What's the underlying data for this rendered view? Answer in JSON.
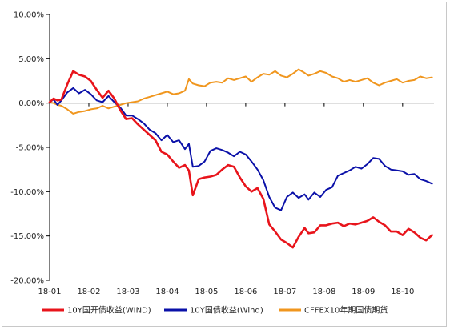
{
  "chart_data": {
    "type": "line",
    "title": "",
    "xlabel": "",
    "ylabel": "",
    "ylim": [
      -20,
      10
    ],
    "y_ticks": [
      10,
      5,
      0,
      -5,
      -10,
      -15,
      -20
    ],
    "y_tick_labels": [
      "10.00%",
      "5.00%",
      "0.00%",
      "-5.00%",
      "-10.00%",
      "-15.00%",
      "-20.00%"
    ],
    "x_ticks": [
      0,
      1,
      2,
      3,
      4,
      5,
      6,
      7,
      8,
      9
    ],
    "x_tick_labels": [
      "18-01",
      "18-02",
      "18-03",
      "18-04",
      "18-05",
      "18-06",
      "18-07",
      "18-08",
      "18-09",
      "18-10"
    ],
    "xlim": [
      0,
      9.8
    ],
    "grid": false,
    "legend_position": "bottom",
    "series": [
      {
        "name": "10Y国开债收益(WIND)",
        "color": "#e8141b",
        "x": [
          0,
          0.1,
          0.2,
          0.3,
          0.45,
          0.6,
          0.75,
          0.9,
          1.05,
          1.2,
          1.35,
          1.5,
          1.65,
          1.8,
          1.95,
          2.1,
          2.25,
          2.4,
          2.55,
          2.7,
          2.85,
          3.0,
          3.15,
          3.3,
          3.45,
          3.55,
          3.65,
          3.8,
          3.95,
          4.1,
          4.25,
          4.4,
          4.55,
          4.7,
          4.85,
          5.0,
          5.15,
          5.3,
          5.45,
          5.6,
          5.75,
          5.9,
          6.05,
          6.2,
          6.35,
          6.5,
          6.6,
          6.75,
          6.9,
          7.05,
          7.2,
          7.35,
          7.5,
          7.65,
          7.8,
          7.95,
          8.1,
          8.25,
          8.4,
          8.55,
          8.7,
          8.85,
          9.0,
          9.15,
          9.3,
          9.45,
          9.6,
          9.75
        ],
        "values": [
          0.1,
          0.5,
          0.3,
          0.4,
          2.1,
          3.6,
          3.2,
          3.0,
          2.5,
          1.5,
          0.6,
          1.4,
          0.5,
          -0.8,
          -1.8,
          -1.7,
          -2.4,
          -3.0,
          -3.6,
          -4.2,
          -5.5,
          -5.8,
          -6.6,
          -7.3,
          -7.0,
          -7.6,
          -10.4,
          -8.6,
          -8.4,
          -8.3,
          -8.1,
          -7.5,
          -7.0,
          -7.2,
          -8.4,
          -9.4,
          -10.0,
          -9.6,
          -10.8,
          -13.7,
          -14.5,
          -15.4,
          -15.8,
          -16.3,
          -15.1,
          -14.1,
          -14.7,
          -14.6,
          -13.8,
          -13.8,
          -13.6,
          -13.5,
          -13.9,
          -13.6,
          -13.7,
          -13.5,
          -13.3,
          -12.9,
          -13.4,
          -13.8,
          -14.5,
          -14.5,
          -14.9,
          -14.2,
          -14.6,
          -15.2,
          -15.5,
          -14.9
        ]
      },
      {
        "name": "10Y国债收益(Wind)",
        "color": "#0a10a8",
        "x": [
          0,
          0.1,
          0.2,
          0.3,
          0.45,
          0.6,
          0.75,
          0.9,
          1.05,
          1.2,
          1.35,
          1.5,
          1.65,
          1.8,
          1.95,
          2.1,
          2.25,
          2.4,
          2.55,
          2.7,
          2.85,
          3.0,
          3.15,
          3.3,
          3.45,
          3.55,
          3.65,
          3.8,
          3.95,
          4.1,
          4.25,
          4.4,
          4.55,
          4.7,
          4.85,
          5.0,
          5.15,
          5.3,
          5.45,
          5.6,
          5.75,
          5.9,
          6.05,
          6.2,
          6.35,
          6.5,
          6.6,
          6.75,
          6.9,
          7.05,
          7.2,
          7.35,
          7.5,
          7.65,
          7.8,
          7.95,
          8.1,
          8.25,
          8.4,
          8.55,
          8.7,
          8.85,
          9.0,
          9.15,
          9.3,
          9.45,
          9.6,
          9.75
        ],
        "values": [
          0.1,
          0.4,
          -0.2,
          0.3,
          1.2,
          1.7,
          1.1,
          1.5,
          1.0,
          0.3,
          0.1,
          0.8,
          0.1,
          -0.5,
          -1.4,
          -1.4,
          -1.8,
          -2.3,
          -3.0,
          -3.4,
          -4.2,
          -3.6,
          -4.4,
          -4.2,
          -5.2,
          -4.6,
          -7.2,
          -7.1,
          -6.6,
          -5.4,
          -5.1,
          -5.3,
          -5.6,
          -6.0,
          -5.5,
          -5.8,
          -6.6,
          -7.5,
          -8.7,
          -10.6,
          -11.8,
          -12.1,
          -10.6,
          -10.1,
          -10.7,
          -10.3,
          -10.9,
          -10.1,
          -10.6,
          -9.8,
          -9.5,
          -8.2,
          -7.9,
          -7.6,
          -7.2,
          -7.4,
          -6.9,
          -6.2,
          -6.3,
          -7.1,
          -7.5,
          -7.6,
          -7.7,
          -8.1,
          -8.0,
          -8.6,
          -8.8,
          -9.1
        ]
      },
      {
        "name": "CFFEX10年期国债期货",
        "color": "#f0961e",
        "x": [
          0,
          0.1,
          0.2,
          0.3,
          0.45,
          0.6,
          0.75,
          0.9,
          1.05,
          1.2,
          1.35,
          1.5,
          1.65,
          1.8,
          1.95,
          2.1,
          2.25,
          2.4,
          2.55,
          2.7,
          2.85,
          3.0,
          3.15,
          3.3,
          3.45,
          3.55,
          3.65,
          3.8,
          3.95,
          4.1,
          4.25,
          4.4,
          4.55,
          4.7,
          4.85,
          5.0,
          5.15,
          5.3,
          5.45,
          5.6,
          5.75,
          5.9,
          6.05,
          6.2,
          6.35,
          6.5,
          6.6,
          6.75,
          6.9,
          7.05,
          7.2,
          7.35,
          7.5,
          7.65,
          7.8,
          7.95,
          8.1,
          8.25,
          8.4,
          8.55,
          8.7,
          8.85,
          9.0,
          9.15,
          9.3,
          9.45,
          9.6,
          9.75
        ],
        "values": [
          0.1,
          0.0,
          -0.2,
          -0.3,
          -0.7,
          -1.2,
          -1.0,
          -0.9,
          -0.7,
          -0.6,
          -0.3,
          -0.6,
          -0.4,
          -0.2,
          0.0,
          0.1,
          0.2,
          0.5,
          0.7,
          0.9,
          1.1,
          1.3,
          1.0,
          1.1,
          1.4,
          2.7,
          2.2,
          2.0,
          1.9,
          2.3,
          2.4,
          2.3,
          2.8,
          2.6,
          2.8,
          3.0,
          2.4,
          2.9,
          3.3,
          3.2,
          3.6,
          3.1,
          2.9,
          3.3,
          3.8,
          3.4,
          3.1,
          3.3,
          3.6,
          3.4,
          3.0,
          2.8,
          2.4,
          2.6,
          2.4,
          2.6,
          2.8,
          2.3,
          2.0,
          2.3,
          2.5,
          2.7,
          2.3,
          2.5,
          2.6,
          3.0,
          2.8,
          2.9
        ]
      }
    ]
  }
}
